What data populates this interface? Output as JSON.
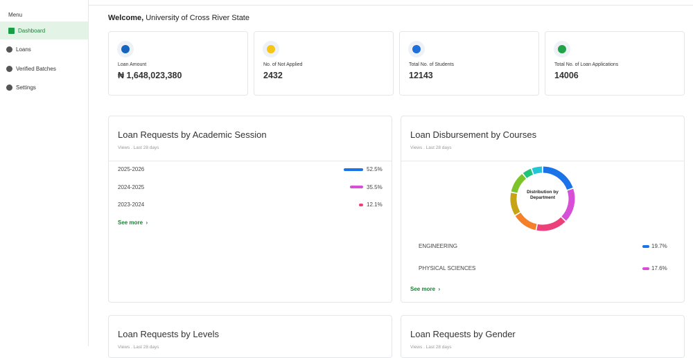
{
  "sidebar": {
    "menu_label": "Menu",
    "items": [
      "Dashboard",
      "Loans",
      "Verified Batches",
      "Settings"
    ],
    "active": 0
  },
  "welcome": {
    "greeting": "Welcome,",
    "name": "University of Cross River State"
  },
  "stats": [
    {
      "label": "Loan Amount",
      "value": "₦ 1,648,023,380",
      "color": "#1565c0"
    },
    {
      "label": "No. of Not Applied",
      "value": "2432",
      "color": "#f5c518"
    },
    {
      "label": "Total No. of Students",
      "value": "12143",
      "color": "#1e6fd9"
    },
    {
      "label": "Total No. of Loan Applications",
      "value": "14006",
      "color": "#1ea34a"
    }
  ],
  "sessions": {
    "title": "Loan Requests by Academic Session",
    "subtitle": "Views . Last 28 days",
    "labels": [
      "2025-2026",
      "2024-2025",
      "2023-2024"
    ],
    "values": [
      52.5,
      35.5,
      12.1
    ],
    "value_labels": [
      "52.5%",
      "35.5%",
      "12.1%"
    ],
    "colors": [
      "#1a73e8",
      "#d64fd6",
      "#ec407a"
    ],
    "see_more": "See more"
  },
  "courses": {
    "title": "Loan Disbursement by Courses",
    "subtitle": "Views . Last 28 days",
    "center_label": "Distribution by Department",
    "segments": [
      {
        "value": 19.7,
        "color": "#1a73e8"
      },
      {
        "value": 17.6,
        "color": "#d64fd6"
      },
      {
        "value": 16,
        "color": "#ec407a"
      },
      {
        "value": 13,
        "color": "#f4812a"
      },
      {
        "value": 12,
        "color": "#c8a415"
      },
      {
        "value": 11,
        "color": "#7cc42a"
      },
      {
        "value": 5,
        "color": "#1fc47a"
      },
      {
        "value": 5.7,
        "color": "#22c6d6"
      }
    ],
    "legend": [
      {
        "label": "ENGINEERING",
        "value": 19.7,
        "value_label": "19.7%",
        "color": "#1a73e8"
      },
      {
        "label": "PHYSICAL SCIENCES",
        "value": 17.6,
        "value_label": "17.6%",
        "color": "#d64fd6"
      }
    ],
    "see_more": "See more"
  },
  "levels": {
    "title": "Loan Requests by Levels",
    "subtitle": "Views . Last 28 days"
  },
  "gender": {
    "title": "Loan Requests by Gender",
    "subtitle": "Views . Last 28 days"
  }
}
